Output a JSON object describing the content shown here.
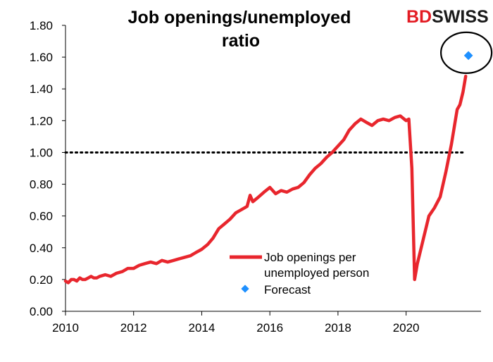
{
  "logo": {
    "part1": "BD",
    "part2": "SWISS",
    "part1_color": "#e31b23",
    "part2_color": "#1a1a1a"
  },
  "chart_data": {
    "type": "line",
    "title_line1": "Job openings/unemployed",
    "title_line2": "ratio",
    "xlabel": "",
    "ylabel": "",
    "xlim": [
      2010.0,
      2022.2
    ],
    "ylim": [
      0,
      1.8
    ],
    "y_ticks": [
      "0.00",
      "0.20",
      "0.40",
      "0.60",
      "0.80",
      "1.00",
      "1.20",
      "1.40",
      "1.60",
      "1.80"
    ],
    "x_ticks": [
      "2010",
      "2012",
      "2014",
      "2016",
      "2018",
      "2020"
    ],
    "reference_line": {
      "y": 1.0,
      "style": "dotted",
      "color": "#000000"
    },
    "legend_placement": "bottom-center",
    "series": [
      {
        "name": "Job openings per unemployed person",
        "legend_line1": "Job openings per",
        "legend_line2": "unemployed person",
        "color": "#e8262d",
        "x": [
          2010.0,
          2010.08,
          2010.17,
          2010.25,
          2010.33,
          2010.42,
          2010.5,
          2010.58,
          2010.67,
          2010.75,
          2010.83,
          2010.92,
          2011.0,
          2011.17,
          2011.33,
          2011.5,
          2011.67,
          2011.83,
          2012.0,
          2012.17,
          2012.33,
          2012.5,
          2012.67,
          2012.83,
          2013.0,
          2013.17,
          2013.33,
          2013.5,
          2013.67,
          2013.83,
          2014.0,
          2014.17,
          2014.33,
          2014.5,
          2014.67,
          2014.83,
          2015.0,
          2015.17,
          2015.33,
          2015.42,
          2015.5,
          2015.67,
          2015.83,
          2016.0,
          2016.17,
          2016.33,
          2016.5,
          2016.67,
          2016.83,
          2017.0,
          2017.17,
          2017.33,
          2017.5,
          2017.67,
          2017.83,
          2018.0,
          2018.17,
          2018.33,
          2018.5,
          2018.67,
          2018.83,
          2019.0,
          2019.17,
          2019.33,
          2019.5,
          2019.67,
          2019.83,
          2020.0,
          2020.08,
          2020.17,
          2020.25,
          2020.33,
          2020.5,
          2020.67,
          2020.83,
          2021.0,
          2021.17,
          2021.33,
          2021.5,
          2021.58,
          2021.67,
          2021.75
        ],
        "y": [
          0.19,
          0.18,
          0.2,
          0.2,
          0.19,
          0.21,
          0.2,
          0.2,
          0.21,
          0.22,
          0.21,
          0.21,
          0.22,
          0.23,
          0.22,
          0.24,
          0.25,
          0.27,
          0.27,
          0.29,
          0.3,
          0.31,
          0.3,
          0.32,
          0.31,
          0.32,
          0.33,
          0.34,
          0.35,
          0.37,
          0.39,
          0.42,
          0.46,
          0.52,
          0.55,
          0.58,
          0.62,
          0.64,
          0.66,
          0.73,
          0.69,
          0.72,
          0.75,
          0.78,
          0.74,
          0.76,
          0.75,
          0.77,
          0.78,
          0.81,
          0.86,
          0.9,
          0.93,
          0.97,
          1.0,
          1.04,
          1.08,
          1.14,
          1.18,
          1.21,
          1.19,
          1.17,
          1.2,
          1.21,
          1.2,
          1.22,
          1.23,
          1.2,
          1.21,
          0.9,
          0.2,
          0.3,
          0.45,
          0.6,
          0.65,
          0.72,
          0.88,
          1.05,
          1.27,
          1.3,
          1.38,
          1.48
        ]
      },
      {
        "name": "Forecast",
        "marker": "diamond",
        "color": "#1e90ff",
        "x": [
          2021.83
        ],
        "y": [
          1.61
        ]
      }
    ],
    "annotation": {
      "type": "ellipse",
      "around": "Forecast",
      "color": "#000000"
    }
  }
}
